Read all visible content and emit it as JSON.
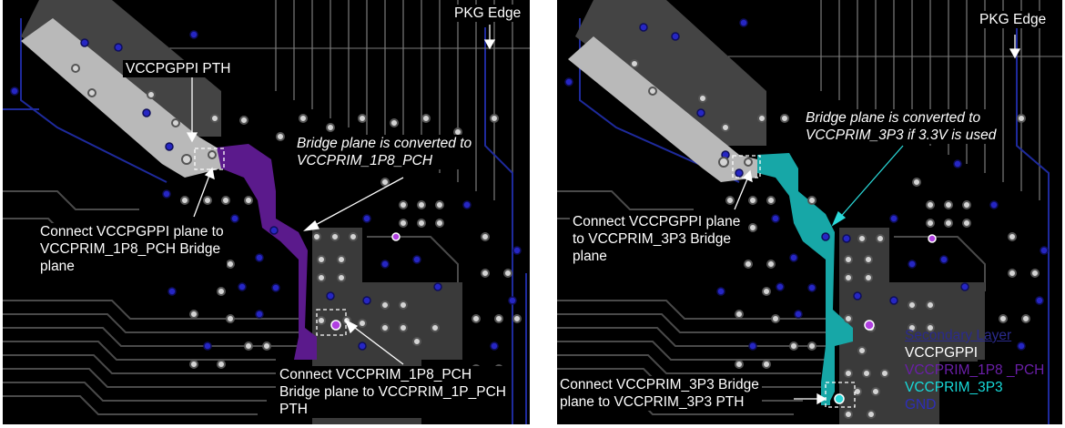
{
  "colors": {
    "background": "#000000",
    "vccgppi_plane": "#b9b9b9",
    "vccprim_1p8_plane": "#5b1a8c",
    "vccprim_3p3_plane": "#17a7a7",
    "gnd_via": "#2626c4",
    "pth_via": "#d4d4d4",
    "gnd_trace": "#1e2a9c",
    "signal_trace": "#4a4a4a",
    "callout_text": "#ffffff"
  },
  "left_panel": {
    "pkg_edge_label": "PKG Edge",
    "pth_label": "VCCPGPPI PTH",
    "bridge_note": "Bridge plane is converted to\nVCCPRIM_1P8_PCH",
    "connect_gppi_note": "Connect VCCPGPPI plane  to\nVCCPRIM_1P8_PCH Bridge\nplane",
    "connect_pth_note": "Connect VCCPRIM_1P8_PCH\nBridge plane to VCCPRIM_1P_PCH\nPTH"
  },
  "right_panel": {
    "pkg_edge_label": "PKG Edge",
    "bridge_note": "Bridge plane is converted to\nVCCPRIM_3P3 if 3.3V is used",
    "connect_gppi_note": "Connect VCCPGPPI plane\nto VCCPRIM_3P3 Bridge\nplane",
    "connect_pth_note": "Connect  VCCPRIM_3P3 Bridge\nplane to VCCPRIM_3P3 PTH"
  },
  "legend": {
    "title": "Secondary Layer",
    "items": [
      {
        "label": "VCCPGPPI",
        "icon": "vccgppi-swatch"
      },
      {
        "label": "VCCPRIM_1P8 _PCH",
        "icon": "vccprim-1p8-swatch"
      },
      {
        "label": "VCCPRIM_3P3",
        "icon": "vccprim-3p3-swatch"
      },
      {
        "label": "GND",
        "icon": "gnd-swatch"
      }
    ]
  }
}
